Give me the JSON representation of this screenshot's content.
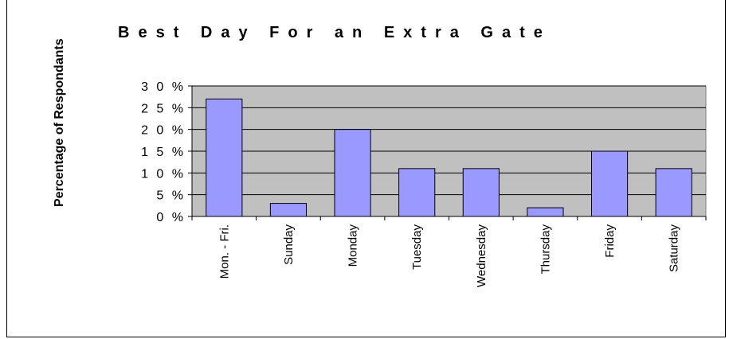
{
  "chart_data": {
    "type": "bar",
    "title": "Best Day For an Extra Gate",
    "xlabel": "",
    "ylabel": "Percentage of Respondants",
    "categories": [
      "Mon. - Fri.",
      "Sunday",
      "Monday",
      "Tuesday",
      "Wednesday",
      "Thursday",
      "Friday",
      "Saturday"
    ],
    "values": [
      27,
      3,
      20,
      11,
      11,
      2,
      15,
      11
    ],
    "ylim": [
      0,
      30
    ],
    "yticks": [
      0,
      5,
      10,
      15,
      20,
      25,
      30
    ],
    "ytick_labels": [
      "0 %",
      "5 %",
      "1 0 %",
      "1 5 %",
      "2 0 %",
      "2 5 %",
      "3 0 %"
    ],
    "grid": true,
    "legend": "none",
    "colors": {
      "bar_fill": "#9999ff",
      "bar_stroke": "#000000",
      "plot_background": "#c0c0c0",
      "gridline": "#000000"
    }
  }
}
